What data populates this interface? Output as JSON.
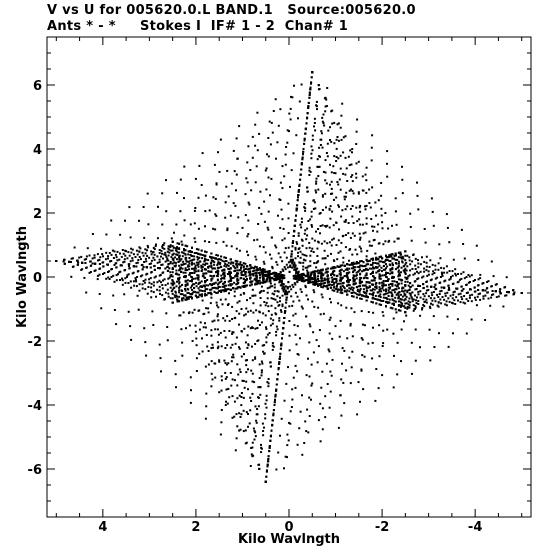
{
  "title_line1": "V vs U for 005620.0.L BAND.1   Source:005620.0",
  "title_line2": "Ants * - *     Stokes I  IF# 1 - 2  Chan# 1",
  "chart_data": {
    "type": "scatter",
    "xlabel": "Kilo Wavlngth",
    "ylabel": "Kilo Wavlngth",
    "xlim": [
      5.2,
      -5.2
    ],
    "ylim": [
      -7.5,
      7.5
    ],
    "x_ticks": [
      4,
      2,
      0,
      -2,
      -4
    ],
    "y_ticks": [
      6,
      4,
      2,
      0,
      -2,
      -4,
      -6
    ],
    "x_tick_labels": [
      "4",
      "2",
      "0",
      "-2",
      "-4"
    ],
    "y_tick_labels": [
      "6",
      "4",
      "2",
      "0",
      "-2",
      "-4",
      "-6"
    ],
    "grid": false,
    "marker_color": "#000000",
    "arms": [
      {
        "endpoint": [
          -0.5,
          6.4
        ],
        "samples": 40
      },
      {
        "endpoint": [
          5.0,
          0.5
        ],
        "samples": 32
      },
      {
        "endpoint": [
          2.5,
          1.1
        ],
        "samples": 24
      },
      {
        "endpoint": [
          -2.4,
          0.7
        ],
        "samples": 24
      },
      {
        "endpoint": [
          -5.0,
          -0.5
        ],
        "samples": 32
      },
      {
        "endpoint": [
          -2.7,
          -1.0
        ],
        "samples": 24
      },
      {
        "endpoint": [
          2.5,
          -0.8
        ],
        "samples": 24
      },
      {
        "endpoint": [
          0.5,
          -6.4
        ],
        "samples": 40
      }
    ],
    "tracks": [
      {
        "pairs": [
          [
            0,
            1
          ],
          [
            1,
            2
          ],
          [
            2,
            6
          ],
          [
            1,
            6
          ]
        ],
        "tracks": 18
      },
      {
        "pairs": [
          [
            0,
            4
          ],
          [
            4,
            3
          ],
          [
            3,
            5
          ],
          [
            4,
            5
          ]
        ],
        "tracks": 18
      },
      {
        "pairs": [
          [
            7,
            2
          ],
          [
            7,
            6
          ],
          [
            7,
            5
          ]
        ],
        "tracks": 12
      },
      {
        "pairs": [
          [
            0,
            3
          ],
          [
            0,
            5
          ]
        ],
        "tracks": 10
      }
    ]
  }
}
